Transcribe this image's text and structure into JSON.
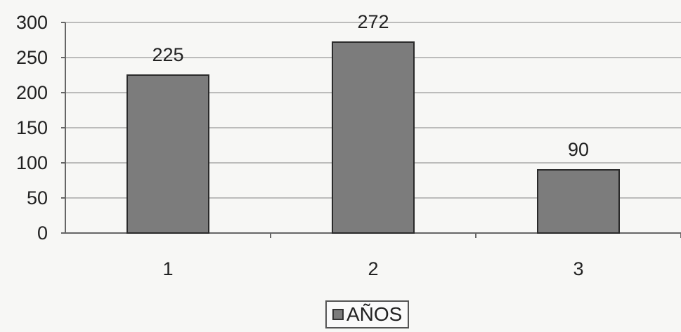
{
  "chart_data": {
    "type": "bar",
    "categories": [
      "1",
      "2",
      "3"
    ],
    "series": [
      {
        "name": "AÑOS",
        "values": [
          225,
          272,
          90
        ]
      }
    ],
    "data_labels": [
      "225",
      "272",
      "90"
    ],
    "yticks": [
      "0",
      "50",
      "100",
      "150",
      "200",
      "250",
      "300"
    ],
    "ylim": [
      0,
      300
    ],
    "grid": true,
    "legend_position": "bottom-center",
    "bar_color": "#7c7c7c",
    "gridline_color": "#a8a8a8"
  }
}
